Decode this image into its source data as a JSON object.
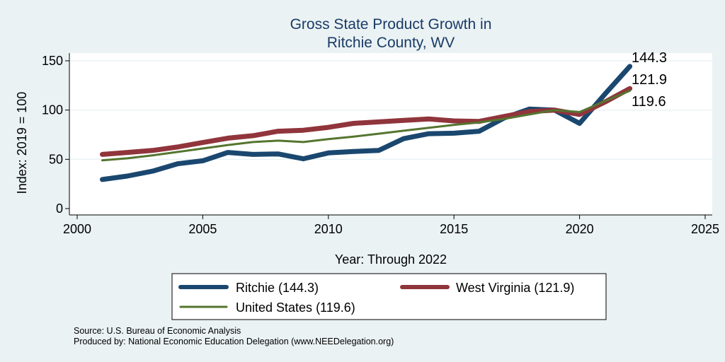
{
  "chart_data": {
    "type": "line",
    "title": [
      "Gross State Product Growth in",
      "Ritchie County, WV"
    ],
    "xlabel": "Year: Through 2022",
    "ylabel": "Index: 2019 = 100",
    "xlim": [
      2000,
      2025
    ],
    "ylim": [
      0,
      150
    ],
    "xticks": [
      2000,
      2005,
      2010,
      2015,
      2020,
      2025
    ],
    "yticks": [
      0,
      50,
      100,
      150
    ],
    "grid": "horizontal",
    "x": [
      2001,
      2002,
      2003,
      2004,
      2005,
      2006,
      2007,
      2008,
      2009,
      2010,
      2011,
      2012,
      2013,
      2014,
      2015,
      2016,
      2017,
      2018,
      2019,
      2020,
      2021,
      2022
    ],
    "series": [
      {
        "name": "Ritchie",
        "legend_label": "Ritchie  (144.3)",
        "end_label": "144.3",
        "color": "#1a476f",
        "values": [
          29.5,
          33,
          38,
          45.5,
          48.5,
          57,
          55,
          55.5,
          50.5,
          56.5,
          58,
          59,
          71,
          76,
          76.5,
          78.5,
          92,
          101,
          100,
          86.5,
          116,
          144.3
        ]
      },
      {
        "name": "West Virginia",
        "legend_label": "West Virginia (121.9)",
        "end_label": "121.9",
        "color": "#90353b",
        "values": [
          55,
          57,
          59,
          62.5,
          67,
          71.5,
          74,
          78.5,
          79.5,
          82.5,
          86.5,
          88,
          89.5,
          91,
          89,
          88.5,
          93.5,
          98.5,
          100,
          95.5,
          108,
          121.9
        ]
      },
      {
        "name": "United States",
        "legend_label": "United States (119.6)",
        "end_label": "119.6",
        "color": "#55752f",
        "values": [
          49,
          51,
          54,
          57.5,
          61,
          64.5,
          67.5,
          69,
          67.5,
          70.5,
          73,
          76,
          79,
          82,
          85,
          87.5,
          91,
          95.5,
          100,
          98,
          109,
          119.6
        ]
      }
    ]
  },
  "source": {
    "line1": "Source: U.S. Bureau of Economic Analysis",
    "line2": "Produced by: National Economic Education Delegation (www.NEEDelegation.org)"
  }
}
